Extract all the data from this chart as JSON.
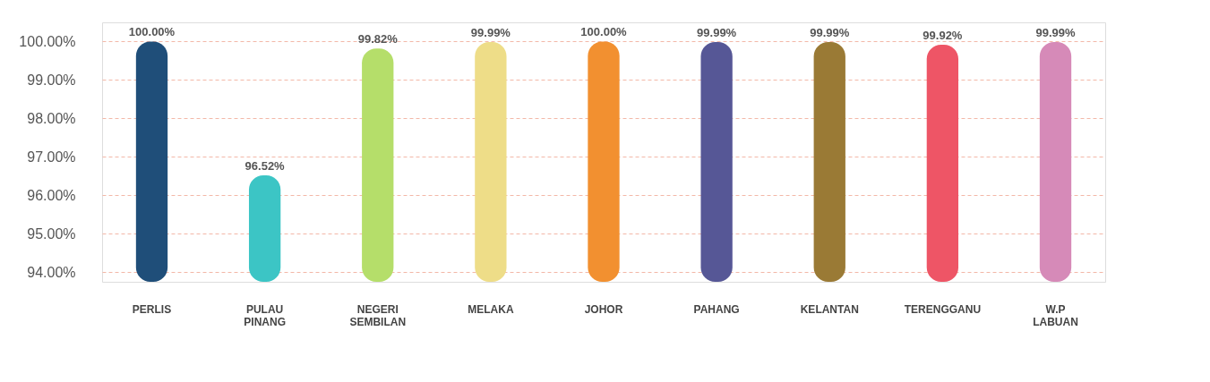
{
  "chart_data": {
    "type": "bar",
    "categories": [
      "PERLIS",
      "PULAU PINANG",
      "NEGERI SEMBILAN",
      "MELAKA",
      "JOHOR",
      "PAHANG",
      "KELANTAN",
      "TERENGGANU",
      "W.P LABUAN"
    ],
    "values": [
      100.0,
      96.52,
      99.82,
      99.99,
      100.0,
      99.99,
      99.99,
      99.92,
      99.99
    ],
    "colors": [
      "#1f4e79",
      "#3cc5c5",
      "#b5de6a",
      "#eedd88",
      "#f29030",
      "#565796",
      "#9a7a35",
      "#ee5566",
      "#d68ab8"
    ],
    "value_labels": [
      "100.00%",
      "96.52%",
      "99.82%",
      "99.99%",
      "100.00%",
      "99.99%",
      "99.99%",
      "99.92%",
      "99.99%"
    ],
    "ylim": [
      93.75,
      100.5
    ],
    "yticks": [
      {
        "value": 94,
        "label": "94.00%"
      },
      {
        "value": 95,
        "label": "95.00%"
      },
      {
        "value": 96,
        "label": "96.00%"
      },
      {
        "value": 97,
        "label": "97.00%"
      },
      {
        "value": 98,
        "label": "98.00%"
      },
      {
        "value": 99,
        "label": "99.00%"
      },
      {
        "value": 100,
        "label": "100.00%"
      }
    ],
    "grid": "y",
    "legend": false
  }
}
